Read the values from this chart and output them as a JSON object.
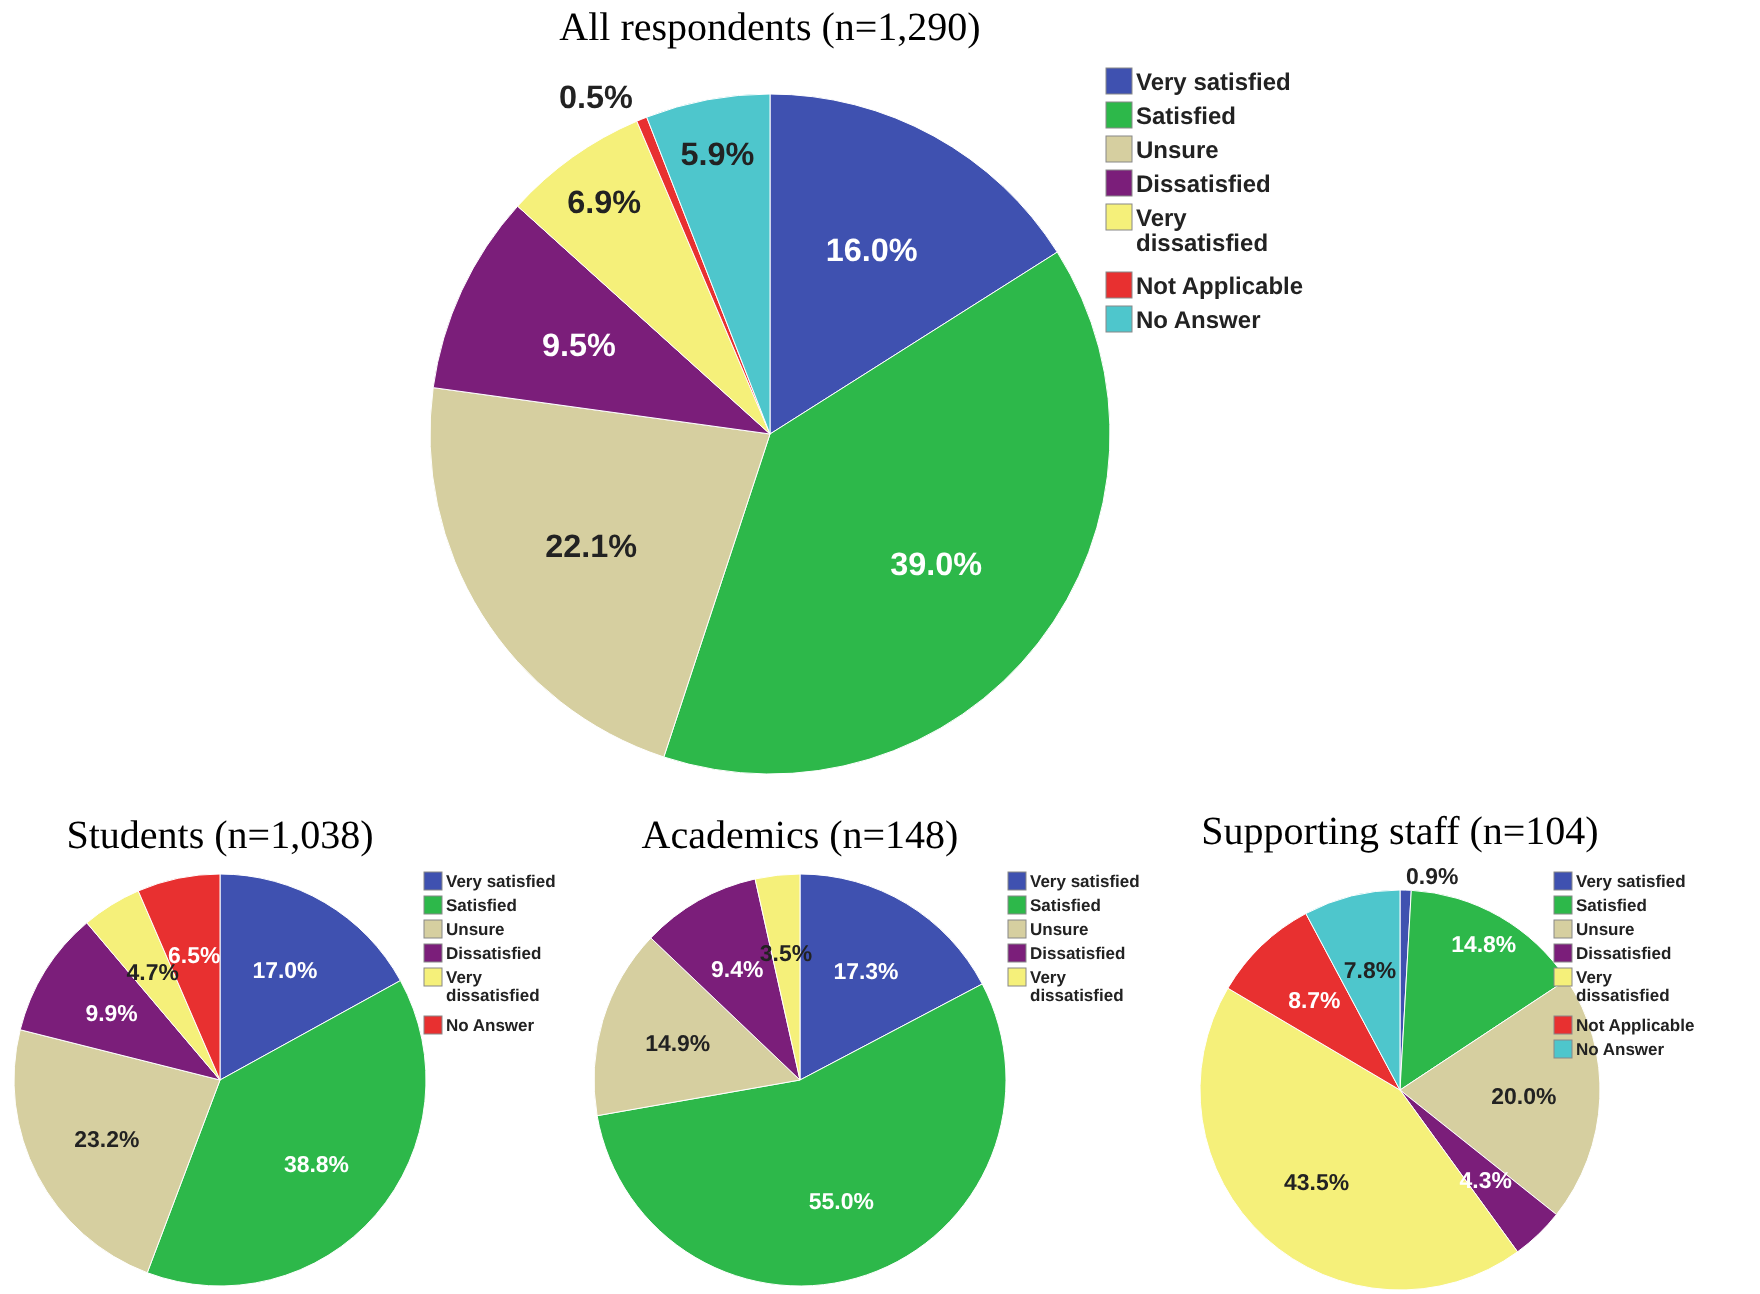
{
  "chart_data": [
    {
      "type": "pie",
      "title": "All respondents (n=1,290)",
      "categories": [
        "Very satisfied",
        "Satisfied",
        "Unsure",
        "Dissatisfied",
        "Very dissatisfied",
        "Not Applicable",
        "No Answer"
      ],
      "values": [
        16.0,
        39.0,
        22.1,
        9.5,
        6.9,
        0.5,
        5.9
      ],
      "value_labels": [
        "16.0%",
        "39.0%",
        "22.1%",
        "9.5%",
        "6.9%",
        "0.5%",
        "5.9%"
      ],
      "colors": [
        "#3f51b0",
        "#2db84a",
        "#d6cfa0",
        "#7b1e7a",
        "#f5f07a",
        "#e83030",
        "#4ec6cc"
      ],
      "legend": "top right"
    },
    {
      "type": "pie",
      "title": "Students (n=1,038)",
      "categories": [
        "Very satisfied",
        "Satisfied",
        "Unsure",
        "Dissatisfied",
        "Very dissatisfied",
        "No Answer"
      ],
      "values": [
        17.0,
        38.8,
        23.2,
        9.9,
        4.7,
        6.5
      ],
      "value_labels": [
        "17.0%",
        "38.8%",
        "23.2%",
        "9.9%",
        "4.7%",
        "6.5%"
      ],
      "colors": [
        "#3f51b0",
        "#2db84a",
        "#d6cfa0",
        "#7b1e7a",
        "#f5f07a",
        "#e83030"
      ],
      "legend": "top right"
    },
    {
      "type": "pie",
      "title": "Academics (n=148)",
      "categories": [
        "Very satisfied",
        "Satisfied",
        "Unsure",
        "Dissatisfied",
        "Very dissatisfied"
      ],
      "values": [
        17.3,
        55.0,
        14.9,
        9.4,
        3.5
      ],
      "value_labels": [
        "17.3%",
        "55.0%",
        "14.9%",
        "9.4%",
        "3.5%"
      ],
      "colors": [
        "#3f51b0",
        "#2db84a",
        "#d6cfa0",
        "#7b1e7a",
        "#f5f07a"
      ],
      "legend": "top right"
    },
    {
      "type": "pie",
      "title": "Supporting staff (n=104)",
      "categories": [
        "Very satisfied",
        "Satisfied",
        "Unsure",
        "Dissatisfied",
        "Very dissatisfied",
        "Not Applicable",
        "No Answer"
      ],
      "values": [
        0.9,
        14.8,
        20.0,
        4.3,
        43.5,
        8.7,
        7.8
      ],
      "value_labels": [
        "0.9%",
        "14.8%",
        "20.0%",
        "4.3%",
        "43.5%",
        "8.7%",
        "7.8%"
      ],
      "colors": [
        "#3f51b0",
        "#2db84a",
        "#d6cfa0",
        "#7b1e7a",
        "#f5f07a",
        "#e83030",
        "#4ec6cc"
      ],
      "legend": "top right"
    }
  ]
}
